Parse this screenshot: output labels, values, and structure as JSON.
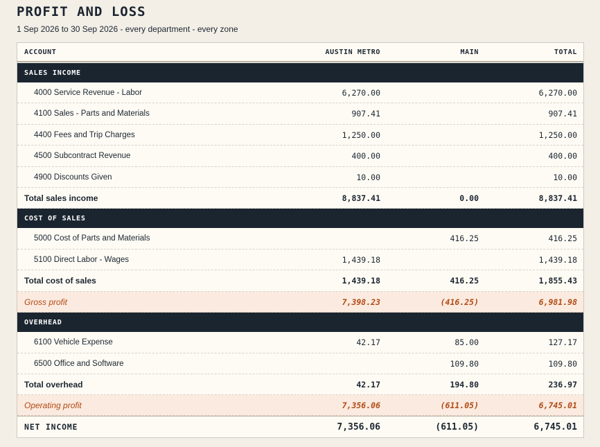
{
  "header": {
    "title": "PROFIT AND LOSS",
    "subtitle": "1 Sep 2026 to 30 Sep 2026 - every department - every zone"
  },
  "columns": [
    "ACCOUNT",
    "AUSTIN METRO",
    "MAIN",
    "TOTAL"
  ],
  "sales_income": {
    "label": "SALES INCOME",
    "rows": [
      {
        "account": "4000 Service Revenue - Labor",
        "austin_metro": "6,270.00",
        "main": "",
        "total": "6,270.00"
      },
      {
        "account": "4100 Sales - Parts and Materials",
        "austin_metro": "907.41",
        "main": "",
        "total": "907.41"
      },
      {
        "account": "4400 Fees and Trip Charges",
        "austin_metro": "1,250.00",
        "main": "",
        "total": "1,250.00"
      },
      {
        "account": "4500 Subcontract Revenue",
        "austin_metro": "400.00",
        "main": "",
        "total": "400.00"
      },
      {
        "account": "4900 Discounts Given",
        "austin_metro": "10.00",
        "main": "",
        "total": "10.00"
      }
    ],
    "total": {
      "account": "Total sales income",
      "austin_metro": "8,837.41",
      "main": "0.00",
      "total": "8,837.41"
    }
  },
  "cost_of_sales": {
    "label": "COST OF SALES",
    "rows": [
      {
        "account": "5000 Cost of Parts and Materials",
        "austin_metro": "",
        "main": "416.25",
        "total": "416.25"
      },
      {
        "account": "5100 Direct Labor - Wages",
        "austin_metro": "1,439.18",
        "main": "",
        "total": "1,439.18"
      }
    ],
    "total": {
      "account": "Total cost of sales",
      "austin_metro": "1,439.18",
      "main": "416.25",
      "total": "1,855.43"
    }
  },
  "gross_profit": {
    "account": "Gross profit",
    "austin_metro": "7,398.23",
    "main": "(416.25)",
    "total": "6,981.98"
  },
  "overhead": {
    "label": "OVERHEAD",
    "rows": [
      {
        "account": "6100 Vehicle Expense",
        "austin_metro": "42.17",
        "main": "85.00",
        "total": "127.17"
      },
      {
        "account": "6500 Office and Software",
        "austin_metro": "",
        "main": "109.80",
        "total": "109.80"
      }
    ],
    "total": {
      "account": "Total overhead",
      "austin_metro": "42.17",
      "main": "194.80",
      "total": "236.97"
    }
  },
  "operating_profit": {
    "account": "Operating profit",
    "austin_metro": "7,356.06",
    "main": "(611.05)",
    "total": "6,745.01"
  },
  "net_income": {
    "account": "NET INCOME",
    "austin_metro": "7,356.06",
    "main": "(611.05)",
    "total": "6,745.01"
  },
  "colors": {
    "band": "#1b2530",
    "accent": "#b04a14",
    "highlight": "#fbeadf",
    "paper": "#fdfbf4",
    "background": "#f3efe7"
  }
}
